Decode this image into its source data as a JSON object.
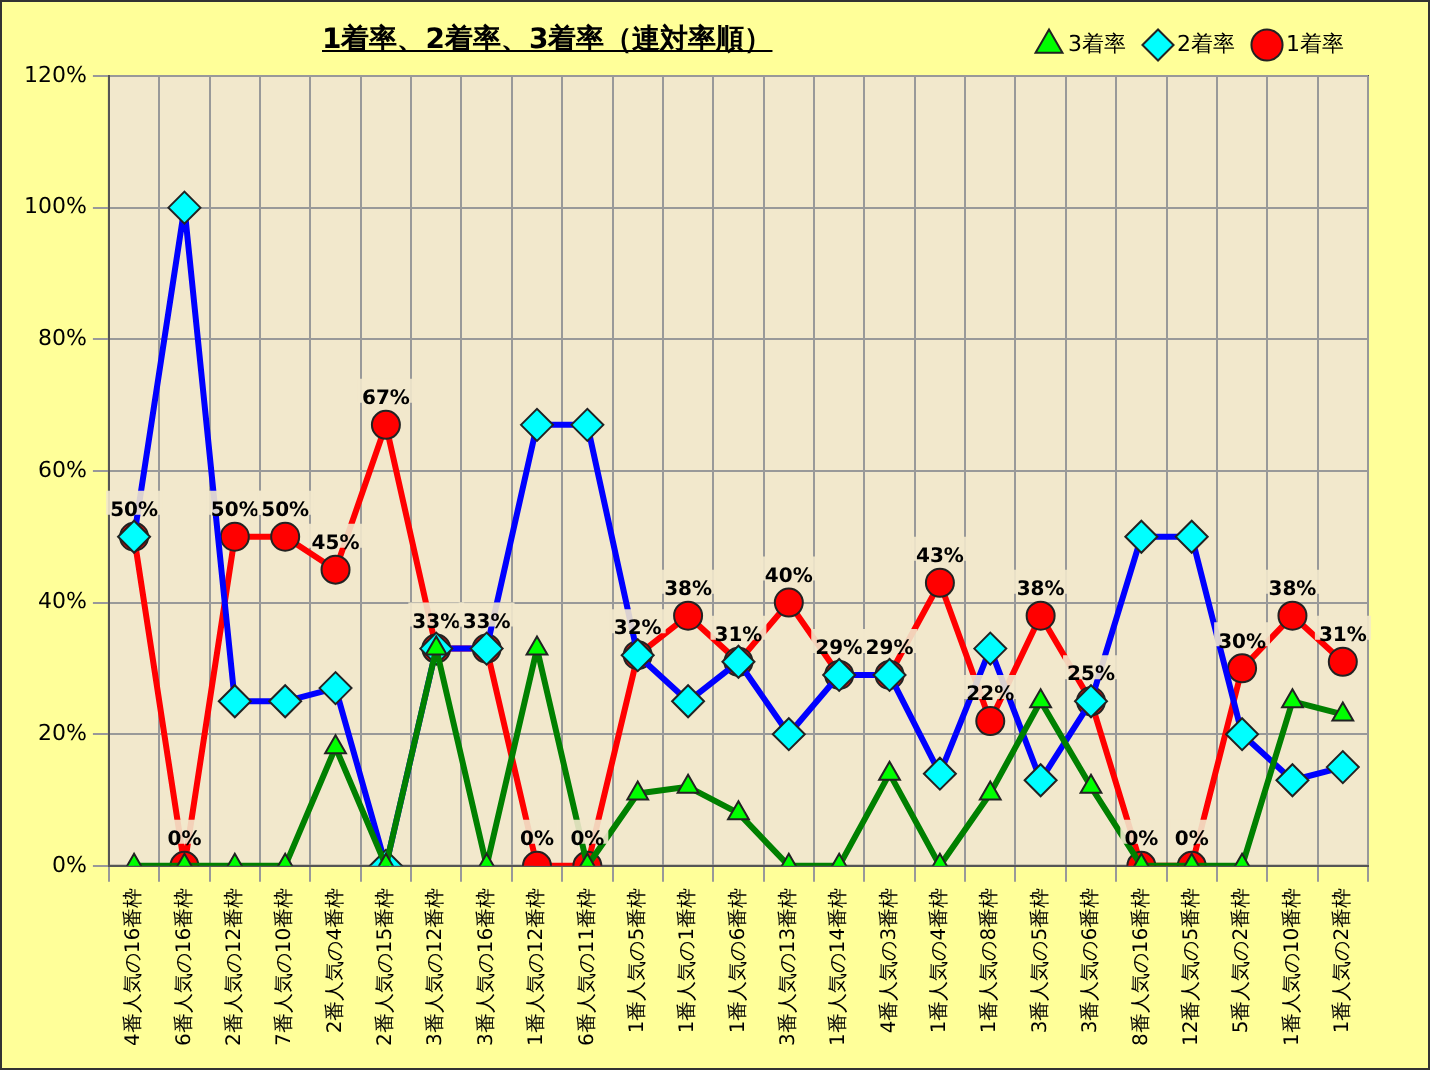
{
  "chart_data": {
    "type": "line",
    "title": "1着率、2着率、3着率（連対率順）",
    "categories": [
      "4番人気の16番枠",
      "6番人気の16番枠",
      "2番人気の12番枠",
      "7番人気の10番枠",
      "2番人気の4番枠",
      "2番人気の15番枠",
      "3番人気の12番枠",
      "3番人気の16番枠",
      "1番人気の12番枠",
      "6番人気の11番枠",
      "1番人気の5番枠",
      "1番人気の1番枠",
      "1番人気の6番枠",
      "3番人気の13番枠",
      "1番人気の14番枠",
      "4番人気の3番枠",
      "1番人気の4番枠",
      "1番人気の8番枠",
      "3番人気の5番枠",
      "3番人気の6番枠",
      "8番人気の16番枠",
      "12番人気の5番枠",
      "5番人気の2番枠",
      "1番人気の10番枠",
      "1番人気の2番枠"
    ],
    "series": [
      {
        "name": "3着率",
        "color": "#008000",
        "marker": "triangle",
        "values": [
          0,
          0,
          0,
          0,
          18,
          0,
          33,
          0,
          33,
          0,
          11,
          12,
          8,
          0,
          0,
          14,
          0,
          11,
          25,
          12,
          0,
          0,
          0,
          25,
          23
        ]
      },
      {
        "name": "2着率",
        "color": "#0000ff",
        "marker": "diamond",
        "values": [
          50,
          100,
          25,
          25,
          27,
          0,
          33,
          33,
          67,
          67,
          32,
          25,
          31,
          20,
          29,
          29,
          14,
          33,
          13,
          25,
          50,
          50,
          20,
          13,
          15
        ]
      },
      {
        "name": "1着率",
        "color": "#ff0000",
        "marker": "circle",
        "values": [
          50,
          0,
          50,
          50,
          45,
          67,
          33,
          33,
          0,
          0,
          32,
          38,
          31,
          40,
          29,
          29,
          43,
          22,
          38,
          25,
          0,
          0,
          30,
          38,
          31
        ],
        "value_labels": [
          "50%",
          "0%",
          "50%",
          "50%",
          "45%",
          "67%",
          "33%",
          "33%",
          "0%",
          "0%",
          "32%",
          "38%",
          "31%",
          "40%",
          "29%",
          "29%",
          "43%",
          "22%",
          "38%",
          "25%",
          "0%",
          "0%",
          "30%",
          "38%",
          "31%"
        ]
      }
    ],
    "ylim": [
      0,
      120
    ],
    "yticks": [
      {
        "value": 0,
        "label": "0%"
      },
      {
        "value": 20,
        "label": "20%"
      },
      {
        "value": 40,
        "label": "40%"
      },
      {
        "value": 60,
        "label": "60%"
      },
      {
        "value": 80,
        "label": "80%"
      },
      {
        "value": 100,
        "label": "100%"
      },
      {
        "value": 120,
        "label": "120%"
      }
    ],
    "grid": true,
    "legend": "top right",
    "line_style": "solid"
  }
}
